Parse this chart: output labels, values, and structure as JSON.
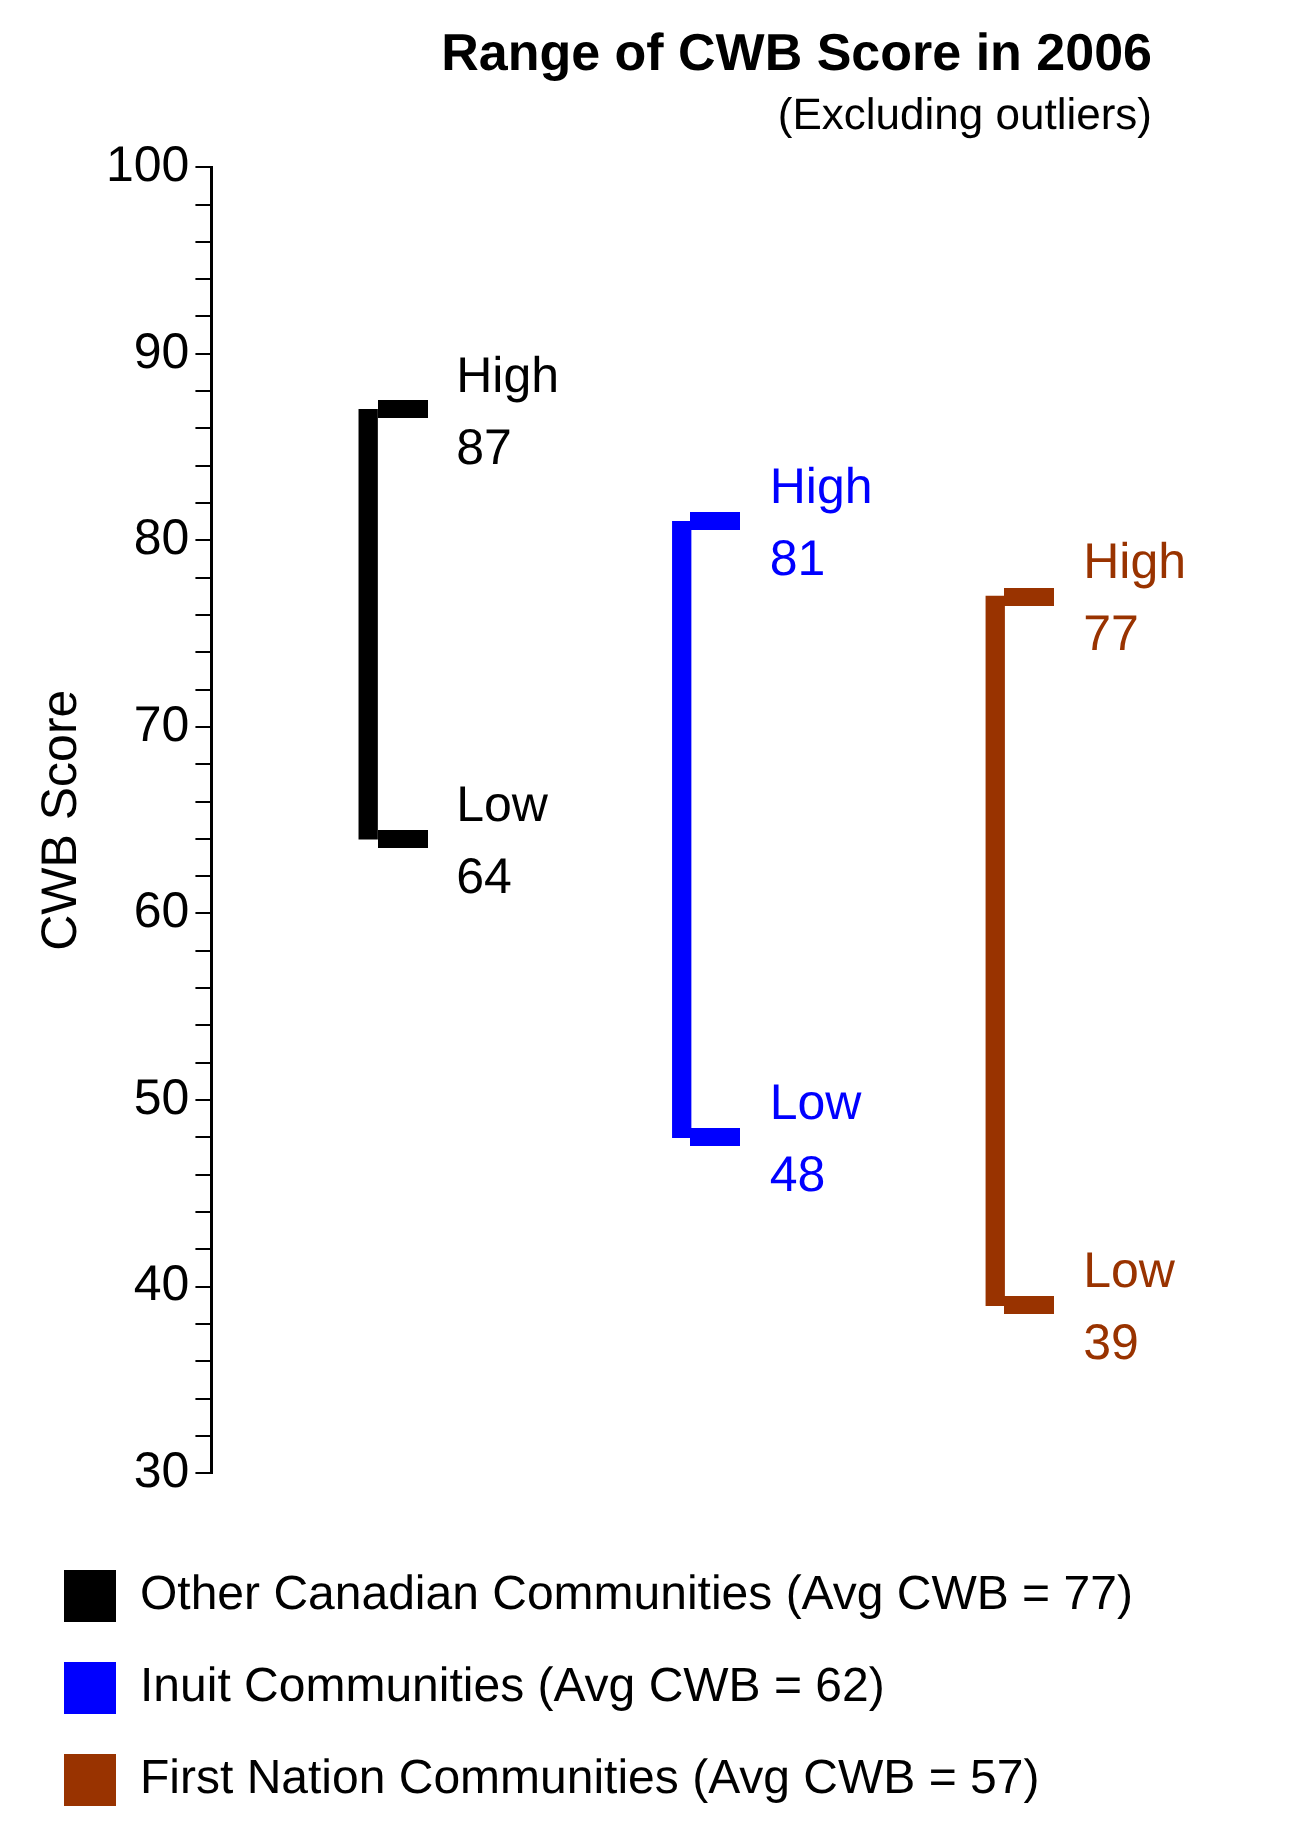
{
  "chart_data": {
    "type": "bar",
    "title": "Range of CWB Score in 2006",
    "subtitle": "(Excluding outliers)",
    "ylabel": "CWB Score",
    "categories": [
      null,
      null,
      null
    ],
    "stacked": true,
    "series": [
      {
        "name": "Other Canadian Communities (Avg CWB = 77)",
        "color": "#000000",
        "values": [
          23,
          null,
          null
        ],
        "base": [
          64,
          null,
          null
        ]
      },
      {
        "name": "Inuit Communities (Avg CWB = 62)",
        "color": "#0000ff",
        "values": [
          null,
          33,
          null
        ],
        "base": [
          null,
          48,
          null
        ]
      },
      {
        "name": "First Nation Communities (Avg CWB = 57)",
        "color": "#993300",
        "values": [
          null,
          null,
          38
        ],
        "base": [
          null,
          null,
          39
        ]
      }
    ],
    "annotations": [
      "High",
      "87",
      "Low",
      "64",
      "High",
      "81",
      "Low",
      "48",
      "High",
      "77",
      "Low",
      "39"
    ],
    "ylim": [
      30,
      100
    ],
    "yticks": [
      30,
      {
        "value": 32,
        "label": null
      },
      {
        "value": 34,
        "label": null
      },
      {
        "value": 36,
        "label": null
      },
      {
        "value": 38,
        "label": null
      },
      40,
      {
        "value": 42,
        "label": null
      },
      {
        "value": 44,
        "label": null
      },
      {
        "value": 46,
        "label": null
      },
      {
        "value": 48,
        "label": null
      },
      50,
      {
        "value": 52,
        "label": null
      },
      {
        "value": 54,
        "label": null
      },
      {
        "value": 56,
        "label": null
      },
      {
        "value": 58,
        "label": null
      },
      60,
      {
        "value": 62,
        "label": null
      },
      {
        "value": 64,
        "label": null
      },
      {
        "value": 66,
        "label": null
      },
      {
        "value": 68,
        "label": null
      },
      70,
      {
        "value": 72,
        "label": null
      },
      {
        "value": 74,
        "label": null
      },
      {
        "value": 76,
        "label": null
      },
      {
        "value": 78,
        "label": null
      },
      80,
      {
        "value": 82,
        "label": null
      },
      {
        "value": 84,
        "label": null
      },
      {
        "value": 86,
        "label": null
      },
      {
        "value": 88,
        "label": null
      },
      90,
      {
        "value": 92,
        "label": null
      },
      {
        "value": 94,
        "label": null
      },
      {
        "value": 96,
        "label": null
      },
      {
        "value": 98,
        "label": null
      },
      100
    ],
    "grid": false,
    "legend": "bottom"
  }
}
